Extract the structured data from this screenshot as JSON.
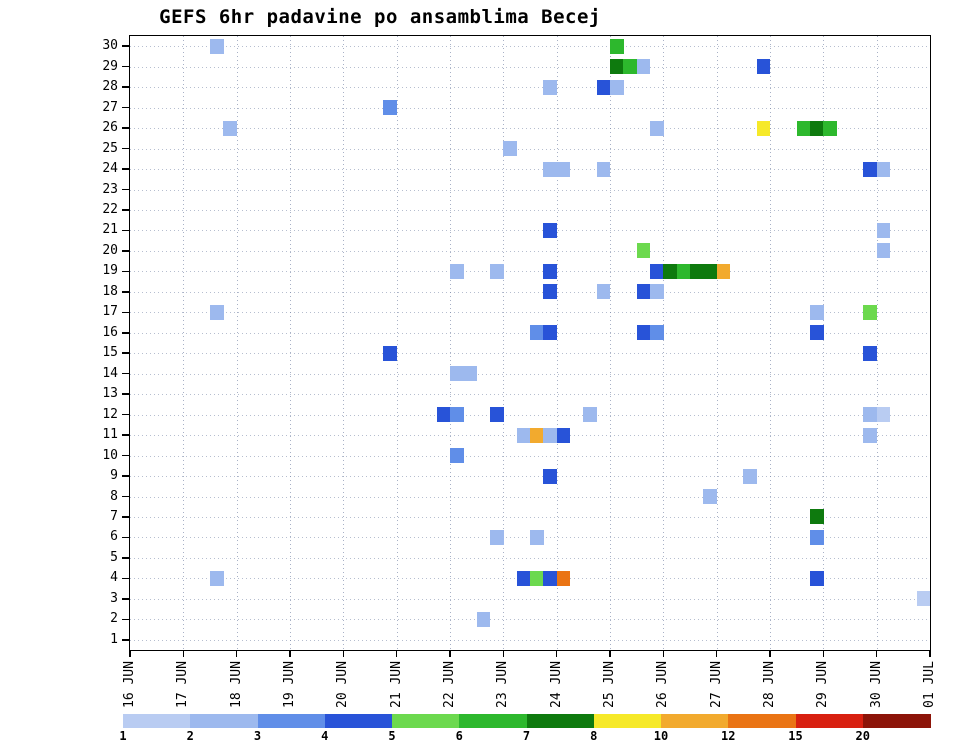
{
  "title": "GEFS 6hr padavine po ansamblima Becej",
  "chart_data": {
    "type": "heatmap",
    "title": "GEFS 6hr padavine po ansamblima Becej",
    "x_labels": [
      "16 JUN",
      "17 JUN",
      "18 JUN",
      "19 JUN",
      "20 JUN",
      "21 JUN",
      "22 JUN",
      "23 JUN",
      "24 JUN",
      "25 JUN",
      "26 JUN",
      "27 JUN",
      "28 JUN",
      "29 JUN",
      "30 JUN",
      "01 JUL"
    ],
    "steps_per_day": 4,
    "step_hours": 6,
    "y_ticks": [
      "30",
      "29",
      "28",
      "27",
      "26",
      "25",
      "24",
      "23",
      "22",
      "21",
      "20",
      "19",
      "18",
      "17",
      "16",
      "15",
      "14",
      "13",
      "12",
      "11",
      "10",
      "9",
      "8",
      "7",
      "6",
      "5",
      "4",
      "3",
      "2",
      "1"
    ],
    "colorbar": {
      "levels": [
        1,
        2,
        3,
        4,
        5,
        6,
        7,
        8,
        10,
        12,
        15,
        20
      ],
      "colors": [
        "#b9ccf2",
        "#9db9ee",
        "#608ee8",
        "#2853d8",
        "#6cd94e",
        "#2db82d",
        "#0e7a0e",
        "#f6e929",
        "#f2aa2e",
        "#ea7414",
        "#d82010",
        "#8c1408"
      ]
    },
    "cell_format": [
      "ensemble_member",
      "six_hour_step_from_16JUN_00h",
      "precip_bin_mm"
    ],
    "cells": [
      [
        30,
        6,
        2
      ],
      [
        30,
        36,
        6
      ],
      [
        29,
        36,
        7
      ],
      [
        29,
        37,
        6
      ],
      [
        29,
        38,
        2
      ],
      [
        29,
        47,
        4
      ],
      [
        28,
        31,
        2
      ],
      [
        28,
        35,
        4
      ],
      [
        28,
        36,
        2
      ],
      [
        27,
        19,
        3
      ],
      [
        26,
        7,
        2
      ],
      [
        26,
        39,
        2
      ],
      [
        26,
        47,
        8
      ],
      [
        26,
        50,
        6
      ],
      [
        26,
        51,
        7
      ],
      [
        26,
        52,
        6
      ],
      [
        25,
        28,
        2
      ],
      [
        24,
        31,
        2
      ],
      [
        24,
        32,
        2
      ],
      [
        24,
        35,
        2
      ],
      [
        24,
        55,
        4
      ],
      [
        24,
        56,
        2
      ],
      [
        21,
        31,
        4
      ],
      [
        21,
        56,
        2
      ],
      [
        20,
        38,
        5
      ],
      [
        20,
        56,
        2
      ],
      [
        19,
        24,
        2
      ],
      [
        19,
        27,
        2
      ],
      [
        19,
        31,
        4
      ],
      [
        19,
        39,
        4
      ],
      [
        19,
        40,
        7
      ],
      [
        19,
        41,
        6
      ],
      [
        19,
        42,
        7
      ],
      [
        19,
        43,
        7
      ],
      [
        19,
        44,
        10
      ],
      [
        18,
        31,
        4
      ],
      [
        18,
        35,
        2
      ],
      [
        18,
        38,
        4
      ],
      [
        18,
        39,
        2
      ],
      [
        17,
        6,
        2
      ],
      [
        17,
        51,
        2
      ],
      [
        17,
        55,
        5
      ],
      [
        16,
        30,
        3
      ],
      [
        16,
        31,
        4
      ],
      [
        16,
        38,
        4
      ],
      [
        16,
        39,
        3
      ],
      [
        16,
        51,
        4
      ],
      [
        15,
        19,
        4
      ],
      [
        15,
        55,
        4
      ],
      [
        14,
        24,
        2
      ],
      [
        14,
        25,
        2
      ],
      [
        12,
        23,
        4
      ],
      [
        12,
        24,
        3
      ],
      [
        12,
        27,
        4
      ],
      [
        12,
        34,
        2
      ],
      [
        12,
        55,
        2
      ],
      [
        12,
        56,
        1
      ],
      [
        11,
        29,
        2
      ],
      [
        11,
        30,
        10
      ],
      [
        11,
        31,
        2
      ],
      [
        11,
        32,
        4
      ],
      [
        11,
        55,
        2
      ],
      [
        10,
        24,
        3
      ],
      [
        9,
        31,
        4
      ],
      [
        9,
        46,
        2
      ],
      [
        8,
        43,
        2
      ],
      [
        7,
        51,
        7
      ],
      [
        6,
        27,
        2
      ],
      [
        6,
        30,
        2
      ],
      [
        6,
        51,
        3
      ],
      [
        4,
        6,
        2
      ],
      [
        4,
        29,
        4
      ],
      [
        4,
        30,
        5
      ],
      [
        4,
        31,
        4
      ],
      [
        4,
        32,
        12
      ],
      [
        4,
        51,
        4
      ],
      [
        3,
        59,
        1
      ],
      [
        2,
        26,
        2
      ]
    ]
  }
}
